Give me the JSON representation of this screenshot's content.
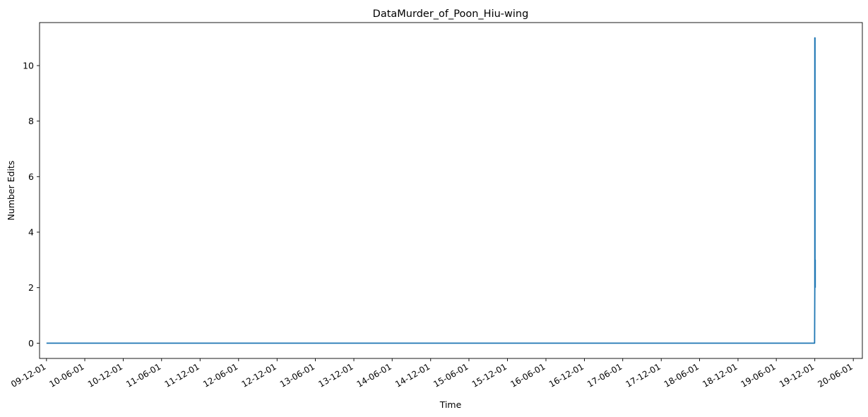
{
  "chart_data": {
    "type": "line",
    "title": "DataMurder_of_Poon_Hiu-wing",
    "xlabel": "Time",
    "ylabel": "Number Edits",
    "x_tick_labels": [
      "09-12-01",
      "10-06-01",
      "10-12-01",
      "11-06-01",
      "11-12-01",
      "12-06-01",
      "12-12-01",
      "13-06-01",
      "13-12-01",
      "14-06-01",
      "14-12-01",
      "15-06-01",
      "15-12-01",
      "16-06-01",
      "16-12-01",
      "17-06-01",
      "17-12-01",
      "18-06-01",
      "18-12-01",
      "19-06-01",
      "19-12-01",
      "20-06-01"
    ],
    "y_ticks": [
      0,
      2,
      4,
      6,
      8,
      10
    ],
    "ylim": [
      -0.55,
      11.55
    ],
    "xlim": [
      "2009-10-29",
      "2020-07-14"
    ],
    "grid": false,
    "series": [
      {
        "color": "#1f77b4",
        "points": [
          [
            "2009-12-01",
            0
          ],
          [
            "2019-11-30",
            0
          ],
          [
            "2019-12-01",
            2
          ],
          [
            "2019-12-01",
            11
          ],
          [
            "2019-12-02",
            11
          ],
          [
            "2019-12-02",
            3
          ],
          [
            "2019-12-03",
            3
          ],
          [
            "2019-12-03",
            2
          ]
        ]
      }
    ]
  }
}
